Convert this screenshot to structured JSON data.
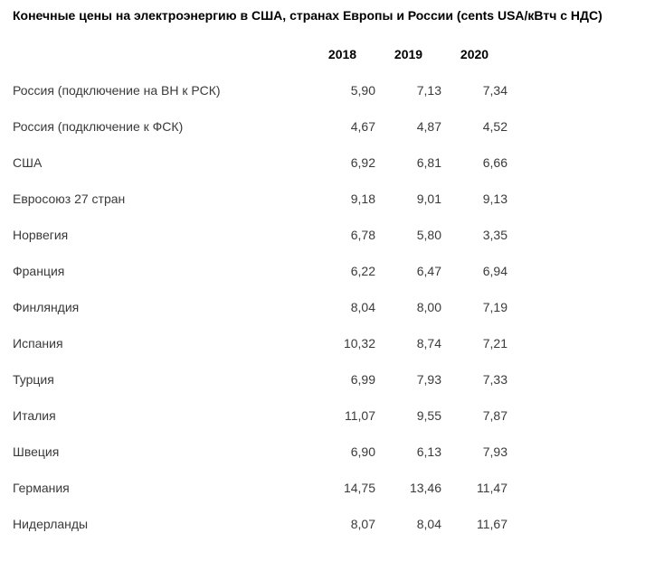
{
  "title": "Конечные цены на электроэнергию в США, странах Европы и России (cents USA/кВтч с НДС)",
  "colors": {
    "background": "#ffffff",
    "title_text": "#000000",
    "body_text": "#3a3a3a"
  },
  "chart_data": {
    "type": "table",
    "title": "Конечные цены на электроэнергию в США, странах Европы и России (cents USA/кВтч с НДС)",
    "unit": "cents USA/кВтч с НДС",
    "columns": [
      "2018",
      "2019",
      "2020"
    ],
    "rows": [
      {
        "label": "Россия (подключение на ВН к РСК)",
        "values": [
          "5,90",
          "7,13",
          "7,34"
        ]
      },
      {
        "label": "Россия (подключение к ФСК)",
        "values": [
          "4,67",
          "4,87",
          "4,52"
        ]
      },
      {
        "label": "США",
        "values": [
          "6,92",
          "6,81",
          "6,66"
        ]
      },
      {
        "label": "Евросоюз 27 стран",
        "values": [
          "9,18",
          "9,01",
          "9,13"
        ]
      },
      {
        "label": "Норвегия",
        "values": [
          "6,78",
          "5,80",
          "3,35"
        ]
      },
      {
        "label": "Франция",
        "values": [
          "6,22",
          "6,47",
          "6,94"
        ]
      },
      {
        "label": "Финляндия",
        "values": [
          "8,04",
          "8,00",
          "7,19"
        ]
      },
      {
        "label": "Испания",
        "values": [
          "10,32",
          "8,74",
          "7,21"
        ]
      },
      {
        "label": "Турция",
        "values": [
          "6,99",
          "7,93",
          "7,33"
        ]
      },
      {
        "label": "Италия",
        "values": [
          "11,07",
          "9,55",
          "7,87"
        ]
      },
      {
        "label": "Швеция",
        "values": [
          "6,90",
          "6,13",
          "7,93"
        ]
      },
      {
        "label": "Германия",
        "values": [
          "14,75",
          "13,46",
          "11,47"
        ]
      },
      {
        "label": "Нидерланды",
        "values": [
          "8,07",
          "8,04",
          "11,67"
        ]
      }
    ],
    "values_numeric": [
      [
        5.9,
        7.13,
        7.34
      ],
      [
        4.67,
        4.87,
        4.52
      ],
      [
        6.92,
        6.81,
        6.66
      ],
      [
        9.18,
        9.01,
        9.13
      ],
      [
        6.78,
        5.8,
        3.35
      ],
      [
        6.22,
        6.47,
        6.94
      ],
      [
        8.04,
        8.0,
        7.19
      ],
      [
        10.32,
        8.74,
        7.21
      ],
      [
        6.99,
        7.93,
        7.33
      ],
      [
        11.07,
        9.55,
        7.87
      ],
      [
        6.9,
        6.13,
        7.93
      ],
      [
        14.75,
        13.46,
        11.47
      ],
      [
        8.07,
        8.04,
        11.67
      ]
    ]
  }
}
